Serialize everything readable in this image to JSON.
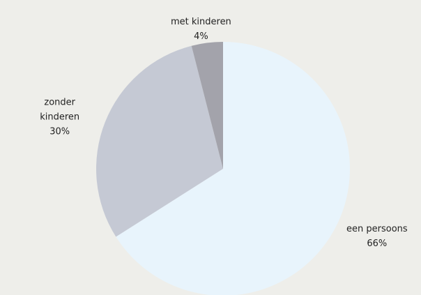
{
  "chart_data": {
    "type": "pie",
    "categories": [
      "een persoons",
      "zonder kinderen",
      "met kinderen"
    ],
    "values": [
      66,
      30,
      4
    ],
    "value_labels": [
      "66%",
      "30%",
      "4%"
    ],
    "colors": [
      "#e8f4fc",
      "#c5c9d4",
      "#a3a3ab"
    ]
  }
}
